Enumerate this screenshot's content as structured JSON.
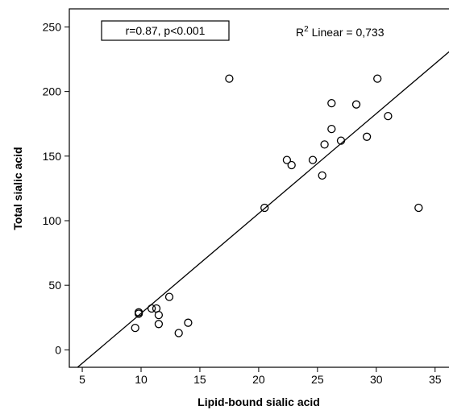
{
  "chart_data": {
    "type": "scatter",
    "xlabel": "Lipid-bound sialic acid",
    "ylabel": "Total sialic acid",
    "xlim": [
      3.9,
      36.8
    ],
    "ylim": [
      -13.5,
      264
    ],
    "x_ticks": [
      5,
      10,
      15,
      20,
      25,
      30,
      35
    ],
    "y_ticks": [
      0,
      50,
      100,
      150,
      200,
      250
    ],
    "grid": false,
    "annotations": {
      "stats_box": "r=0.87, p<0.001",
      "r2_prefix": "R",
      "r2_sup": "2",
      "r2_rest": " Linear = 0,733"
    },
    "fit_line": {
      "x": [
        4.6,
        36.8
      ],
      "y": [
        -13.5,
        235.5
      ]
    },
    "points": [
      {
        "x": 9.5,
        "y": 17
      },
      {
        "x": 9.8,
        "y": 28
      },
      {
        "x": 9.8,
        "y": 29
      },
      {
        "x": 10.9,
        "y": 32
      },
      {
        "x": 11.3,
        "y": 32
      },
      {
        "x": 11.5,
        "y": 27
      },
      {
        "x": 11.5,
        "y": 20
      },
      {
        "x": 12.4,
        "y": 41
      },
      {
        "x": 13.2,
        "y": 13
      },
      {
        "x": 14.0,
        "y": 21
      },
      {
        "x": 17.5,
        "y": 210
      },
      {
        "x": 20.5,
        "y": 110
      },
      {
        "x": 22.4,
        "y": 147
      },
      {
        "x": 22.8,
        "y": 143
      },
      {
        "x": 24.6,
        "y": 147
      },
      {
        "x": 25.4,
        "y": 135
      },
      {
        "x": 25.6,
        "y": 159
      },
      {
        "x": 26.2,
        "y": 191
      },
      {
        "x": 26.2,
        "y": 171
      },
      {
        "x": 27.0,
        "y": 162
      },
      {
        "x": 28.3,
        "y": 190
      },
      {
        "x": 29.2,
        "y": 165
      },
      {
        "x": 30.1,
        "y": 210
      },
      {
        "x": 31.0,
        "y": 181
      },
      {
        "x": 33.6,
        "y": 110
      }
    ]
  }
}
